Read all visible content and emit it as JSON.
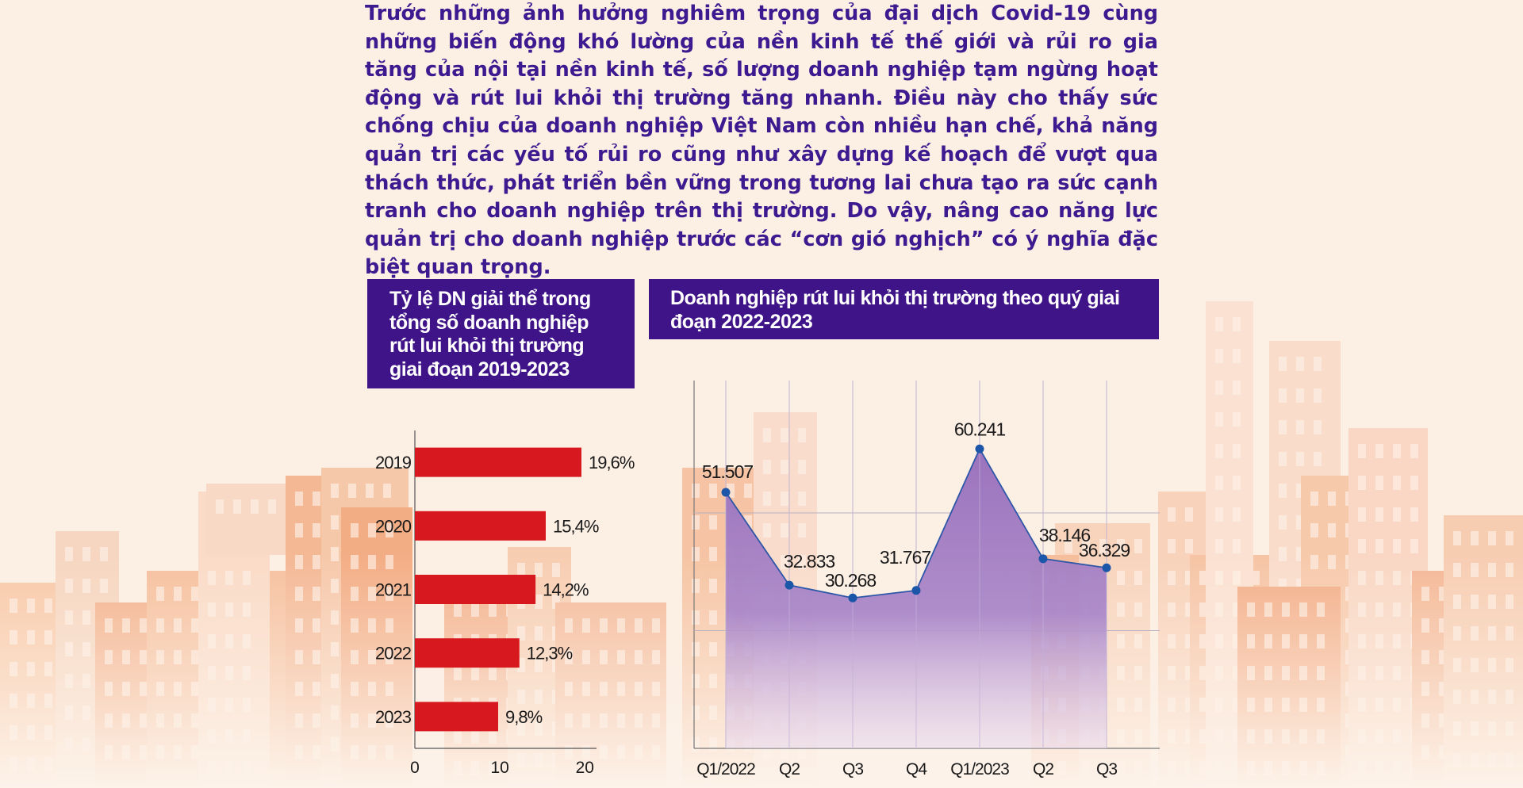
{
  "intro_text": "Trước những ảnh hưởng nghiêm trọng của đại dịch Covid-19 cùng những biến động khó lường của nền kinh tế thế giới và rủi ro gia tăng của nội tại nền kinh tế, số lượng doanh nghiệp tạm ngừng hoạt động và rút lui khỏi thị trường tăng nhanh. Điều này cho thấy sức chống chịu của doanh nghiệp Việt Nam còn nhiều hạn chế, khả năng quản trị các yếu tố rủi ro cũng như xây dựng kế hoạch để vượt qua thách thức, phát triển bền vững trong tương lai chưa tạo ra sức cạnh tranh cho doanh nghiệp trên thị trường. Do vậy, nâng cao năng lực quản trị cho doanh nghiệp trước các “cơn gió nghịch” có ý nghĩa đặc biệt quan trọng.",
  "colors": {
    "title_bg": "#3f1488",
    "intro_text": "#3d1a8f",
    "bar": "#d7191f",
    "area_fill": "#a27cc0",
    "line": "#2e57a8",
    "point": "#1c56a8"
  },
  "chart_data": [
    {
      "type": "bar",
      "orientation": "horizontal",
      "title": "Tỷ lệ DN giải thể trong tổng số doanh nghiệp rút lui khỏi thị trường giai đoạn 2019-2023",
      "categories": [
        "2019",
        "2020",
        "2021",
        "2022",
        "2023"
      ],
      "values": [
        19.6,
        15.4,
        14.2,
        12.3,
        9.8
      ],
      "value_labels": [
        "19,6%",
        "15,4%",
        "14,2%",
        "12,3%",
        "9,8%"
      ],
      "xlim": [
        0,
        21
      ],
      "xticks": [
        0,
        10,
        20
      ],
      "xtick_labels": [
        "0",
        "10",
        "20"
      ],
      "grid": false
    },
    {
      "type": "area",
      "title": "Doanh nghiệp rút lui khỏi thị trường theo quý giai đoạn 2022-2023",
      "categories": [
        "Q1/2022",
        "Q2",
        "Q3",
        "Q4",
        "Q1/2023",
        "Q2",
        "Q3"
      ],
      "values": [
        51507,
        32833,
        30268,
        31767,
        60241,
        38146,
        36329
      ],
      "value_labels": [
        "51.507",
        "32.833",
        "30.268",
        "31.767",
        "60.241",
        "38.146",
        "36.329"
      ],
      "ylim": [
        0,
        74000
      ],
      "grid": true
    }
  ]
}
